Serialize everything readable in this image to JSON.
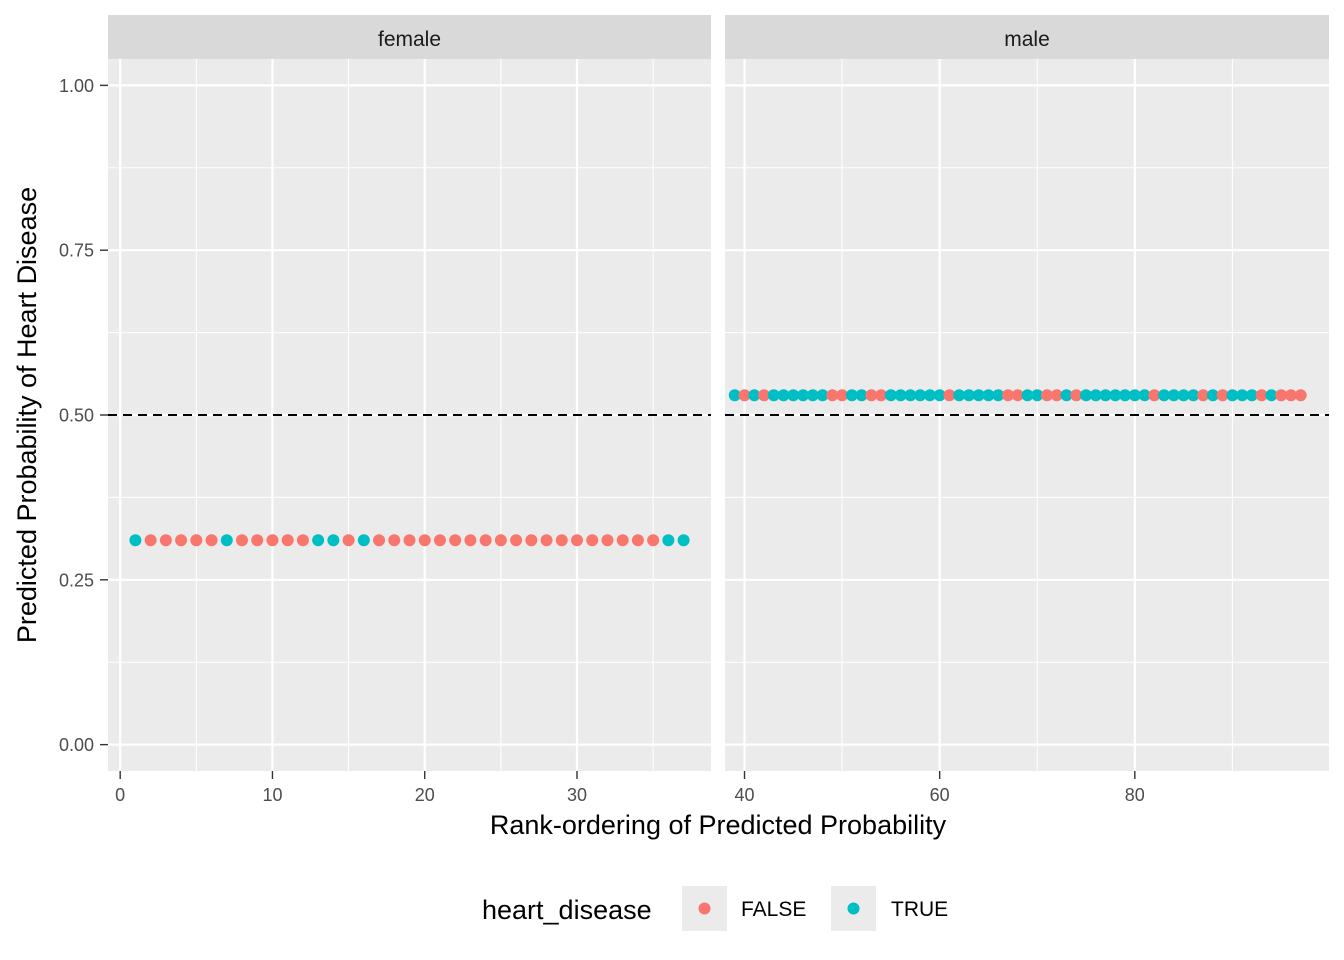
{
  "chart_data": {
    "type": "scatter",
    "ylabel": "Predicted Probability of Heart Disease",
    "xlabel": "Rank-ordering of Predicted Probability",
    "ylim": [
      -0.04,
      1.04
    ],
    "yticks": [
      0.0,
      0.25,
      0.5,
      0.75,
      1.0
    ],
    "ytick_labels": [
      "0.00",
      "0.25",
      "0.50",
      "0.75",
      "1.00"
    ],
    "hline": {
      "y": 0.5,
      "style": "dashed",
      "color": "#000000"
    },
    "grid": true,
    "legend": {
      "title": "heart_disease",
      "position": "bottom",
      "entries": [
        {
          "label": "FALSE",
          "color": "#F8766D"
        },
        {
          "label": "TRUE",
          "color": "#00BFC4"
        }
      ]
    },
    "panels": [
      {
        "strip": "female",
        "xlim": [
          -0.8,
          38.8
        ],
        "xticks": [
          0,
          10,
          20,
          30
        ],
        "xtick_labels": [
          "0",
          "10",
          "20",
          "30"
        ],
        "y_value": 0.31,
        "points_x": [
          1,
          2,
          3,
          4,
          5,
          6,
          7,
          8,
          9,
          10,
          11,
          12,
          13,
          14,
          15,
          16,
          17,
          18,
          19,
          20,
          21,
          22,
          23,
          24,
          25,
          26,
          27,
          28,
          29,
          30,
          31,
          32,
          33,
          34,
          35,
          36,
          37
        ],
        "heart_disease": [
          true,
          false,
          false,
          false,
          false,
          false,
          true,
          false,
          false,
          false,
          false,
          false,
          true,
          true,
          false,
          true,
          false,
          false,
          false,
          false,
          false,
          false,
          false,
          false,
          false,
          false,
          false,
          false,
          false,
          false,
          false,
          false,
          false,
          false,
          false,
          true,
          true
        ]
      },
      {
        "strip": "male",
        "xlim": [
          38,
          99.9
        ],
        "xticks": [
          40,
          60,
          80
        ],
        "xtick_labels": [
          "40",
          "60",
          "80"
        ],
        "y_value": 0.53,
        "points_x": [
          39,
          40,
          41,
          42,
          43,
          44,
          45,
          46,
          47,
          48,
          49,
          50,
          51,
          52,
          53,
          54,
          55,
          56,
          57,
          58,
          59,
          60,
          61,
          62,
          63,
          64,
          65,
          66,
          67,
          68,
          69,
          70,
          71,
          72,
          73,
          74,
          75,
          76,
          77,
          78,
          79,
          80,
          81,
          82,
          83,
          84,
          85,
          86,
          87,
          88,
          89,
          90,
          91,
          92,
          93,
          94,
          95,
          96,
          97
        ],
        "heart_disease": [
          true,
          false,
          true,
          false,
          true,
          true,
          true,
          true,
          true,
          true,
          false,
          false,
          true,
          true,
          false,
          false,
          true,
          true,
          true,
          true,
          true,
          true,
          false,
          true,
          true,
          true,
          true,
          true,
          false,
          false,
          true,
          true,
          false,
          false,
          true,
          false,
          true,
          true,
          true,
          true,
          true,
          true,
          true,
          false,
          true,
          true,
          true,
          true,
          false,
          true,
          false,
          true,
          true,
          true,
          false,
          true,
          false,
          false,
          false
        ]
      }
    ]
  }
}
